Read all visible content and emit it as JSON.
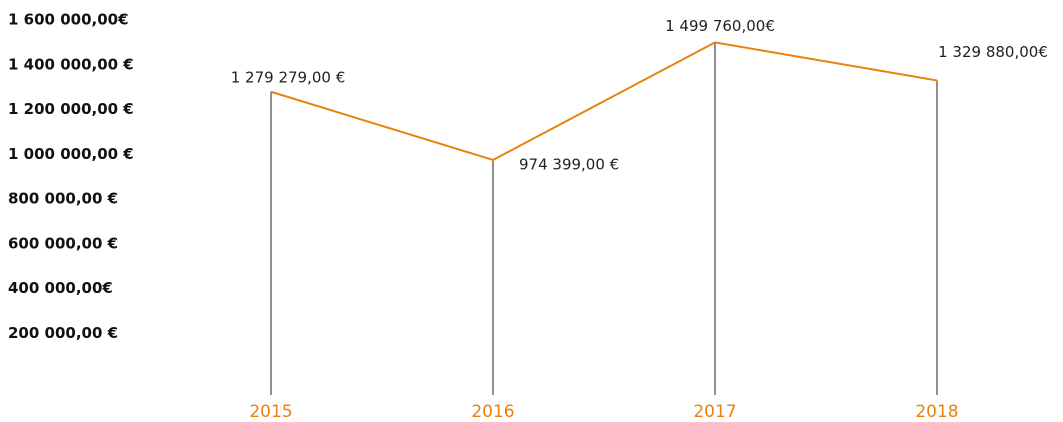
{
  "chart_data": {
    "type": "line",
    "categories": [
      "2015",
      "2016",
      "2017",
      "2018"
    ],
    "values": [
      1279279,
      974399,
      1499760,
      1329880
    ],
    "value_labels": [
      "1 279 279,00 €",
      "974 399,00 €",
      "1 499 760,00€",
      "1 329 880,00€"
    ],
    "color": "#e8820c",
    "ylim": [
      0,
      1600000
    ],
    "yticks": [
      {
        "value": 1600000,
        "label": "1 600 000,00€"
      },
      {
        "value": 1400000,
        "label": "1 400 000,00 €"
      },
      {
        "value": 1200000,
        "label": "1 200 000,00 €"
      },
      {
        "value": 1000000,
        "label": "1 000 000,00 €"
      },
      {
        "value": 800000,
        "label": "800 000,00 €"
      },
      {
        "value": 600000,
        "label": "600 000,00 €"
      },
      {
        "value": 400000,
        "label": "400 000,00€"
      },
      {
        "value": 200000,
        "label": "200 000,00 €"
      }
    ],
    "grid": false
  }
}
